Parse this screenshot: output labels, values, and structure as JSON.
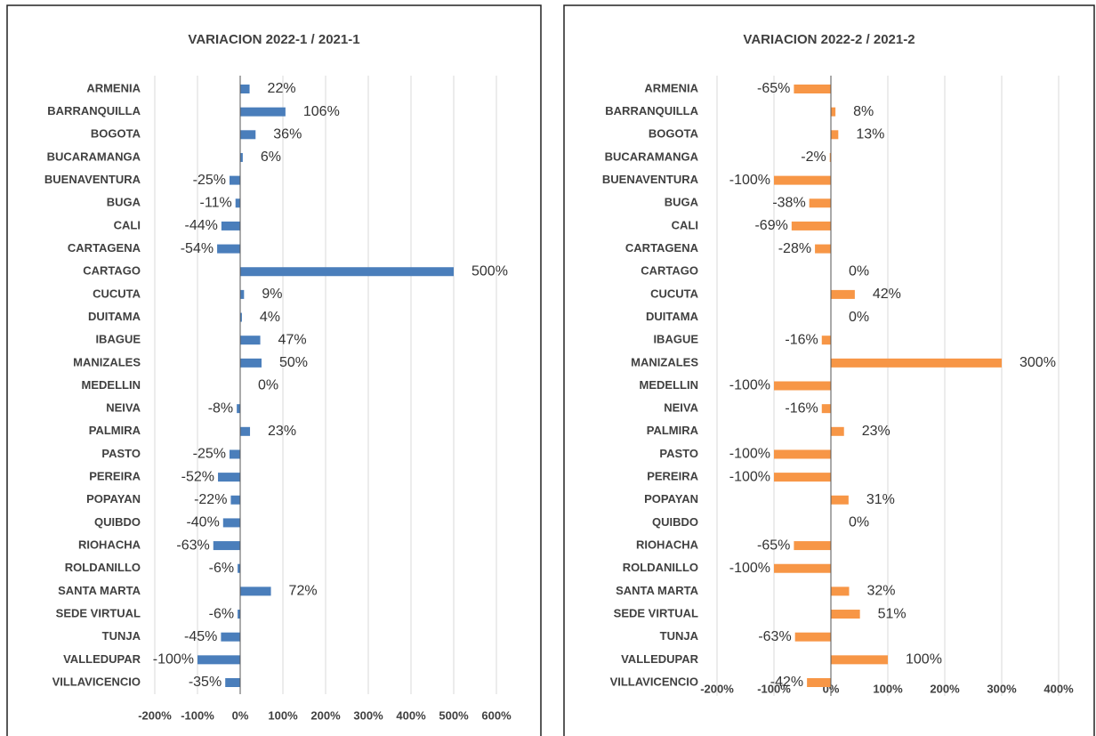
{
  "chart_data": [
    {
      "type": "bar",
      "orientation": "horizontal",
      "title": "VARIACION 2022-1 / 2021-1",
      "color": "#4a7ebb",
      "grid": true,
      "categories": [
        "ARMENIA",
        "BARRANQUILLA",
        "BOGOTA",
        "BUCARAMANGA",
        "BUENAVENTURA",
        "BUGA",
        "CALI",
        "CARTAGENA",
        "CARTAGO",
        "CUCUTA",
        "DUITAMA",
        "IBAGUE",
        "MANIZALES",
        "MEDELLIN",
        "NEIVA",
        "PALMIRA",
        "PASTO",
        "PEREIRA",
        "POPAYAN",
        "QUIBDO",
        "RIOHACHA",
        "ROLDANILLO",
        "SANTA MARTA",
        "SEDE VIRTUAL",
        "TUNJA",
        "VALLEDUPAR",
        "VILLAVICENCIO"
      ],
      "values": [
        22,
        106,
        36,
        6,
        -25,
        -11,
        -44,
        -54,
        500,
        9,
        4,
        47,
        50,
        0,
        -8,
        23,
        -25,
        -52,
        -22,
        -40,
        -63,
        -6,
        72,
        -6,
        -45,
        -100,
        -35
      ],
      "value_labels": [
        "22%",
        "106%",
        "36%",
        "6%",
        "-25%",
        "-11%",
        "-44%",
        "-54%",
        "500%",
        "9%",
        "4%",
        "47%",
        "50%",
        "0%",
        "-8%",
        "23%",
        "-25%",
        "-52%",
        "-22%",
        "-40%",
        "-63%",
        "-6%",
        "72%",
        "-6%",
        "-45%",
        "-100%",
        "-35%"
      ],
      "xlim": [
        -200,
        600
      ],
      "xticks": [
        {
          "value": -200,
          "label": "-200%"
        },
        {
          "value": -100,
          "label": "-100%"
        },
        {
          "value": 0,
          "label": "0%"
        },
        {
          "value": 100,
          "label": "100%"
        },
        {
          "value": 200,
          "label": "200%"
        },
        {
          "value": 300,
          "label": "300%"
        },
        {
          "value": 400,
          "label": "400%"
        },
        {
          "value": 500,
          "label": "500%"
        },
        {
          "value": 600,
          "label": "600%"
        }
      ]
    },
    {
      "type": "bar",
      "orientation": "horizontal",
      "title": "VARIACION 2022-2 / 2021-2",
      "color": "#f79646",
      "grid": true,
      "categories": [
        "ARMENIA",
        "BARRANQUILLA",
        "BOGOTA",
        "BUCARAMANGA",
        "BUENAVENTURA",
        "BUGA",
        "CALI",
        "CARTAGENA",
        "CARTAGO",
        "CUCUTA",
        "DUITAMA",
        "IBAGUE",
        "MANIZALES",
        "MEDELLIN",
        "NEIVA",
        "PALMIRA",
        "PASTO",
        "PEREIRA",
        "POPAYAN",
        "QUIBDO",
        "RIOHACHA",
        "ROLDANILLO",
        "SANTA MARTA",
        "SEDE VIRTUAL",
        "TUNJA",
        "VALLEDUPAR",
        "VILLAVICENCIO"
      ],
      "values": [
        -65,
        8,
        13,
        -2,
        -100,
        -38,
        -69,
        -28,
        0,
        42,
        0,
        -16,
        300,
        -100,
        -16,
        23,
        -100,
        -100,
        31,
        0,
        -65,
        -100,
        32,
        51,
        -63,
        100,
        -42
      ],
      "value_labels": [
        "-65%",
        "8%",
        "13%",
        "-2%",
        "-100%",
        "-38%",
        "-69%",
        "-28%",
        "0%",
        "42%",
        "0%",
        "-16%",
        "300%",
        "-100%",
        "-16%",
        "23%",
        "-100%",
        "-100%",
        "31%",
        "0%",
        "-65%",
        "-100%",
        "32%",
        "51%",
        "-63%",
        "100%",
        "-42%"
      ],
      "xlim": [
        -200,
        400
      ],
      "xticks": [
        {
          "value": -200,
          "label": "-200%"
        },
        {
          "value": -100,
          "label": "-100%"
        },
        {
          "value": 0,
          "label": "0%"
        },
        {
          "value": 100,
          "label": "100%"
        },
        {
          "value": 200,
          "label": "200%"
        },
        {
          "value": 300,
          "label": "300%"
        },
        {
          "value": 400,
          "label": "400%"
        }
      ]
    }
  ]
}
